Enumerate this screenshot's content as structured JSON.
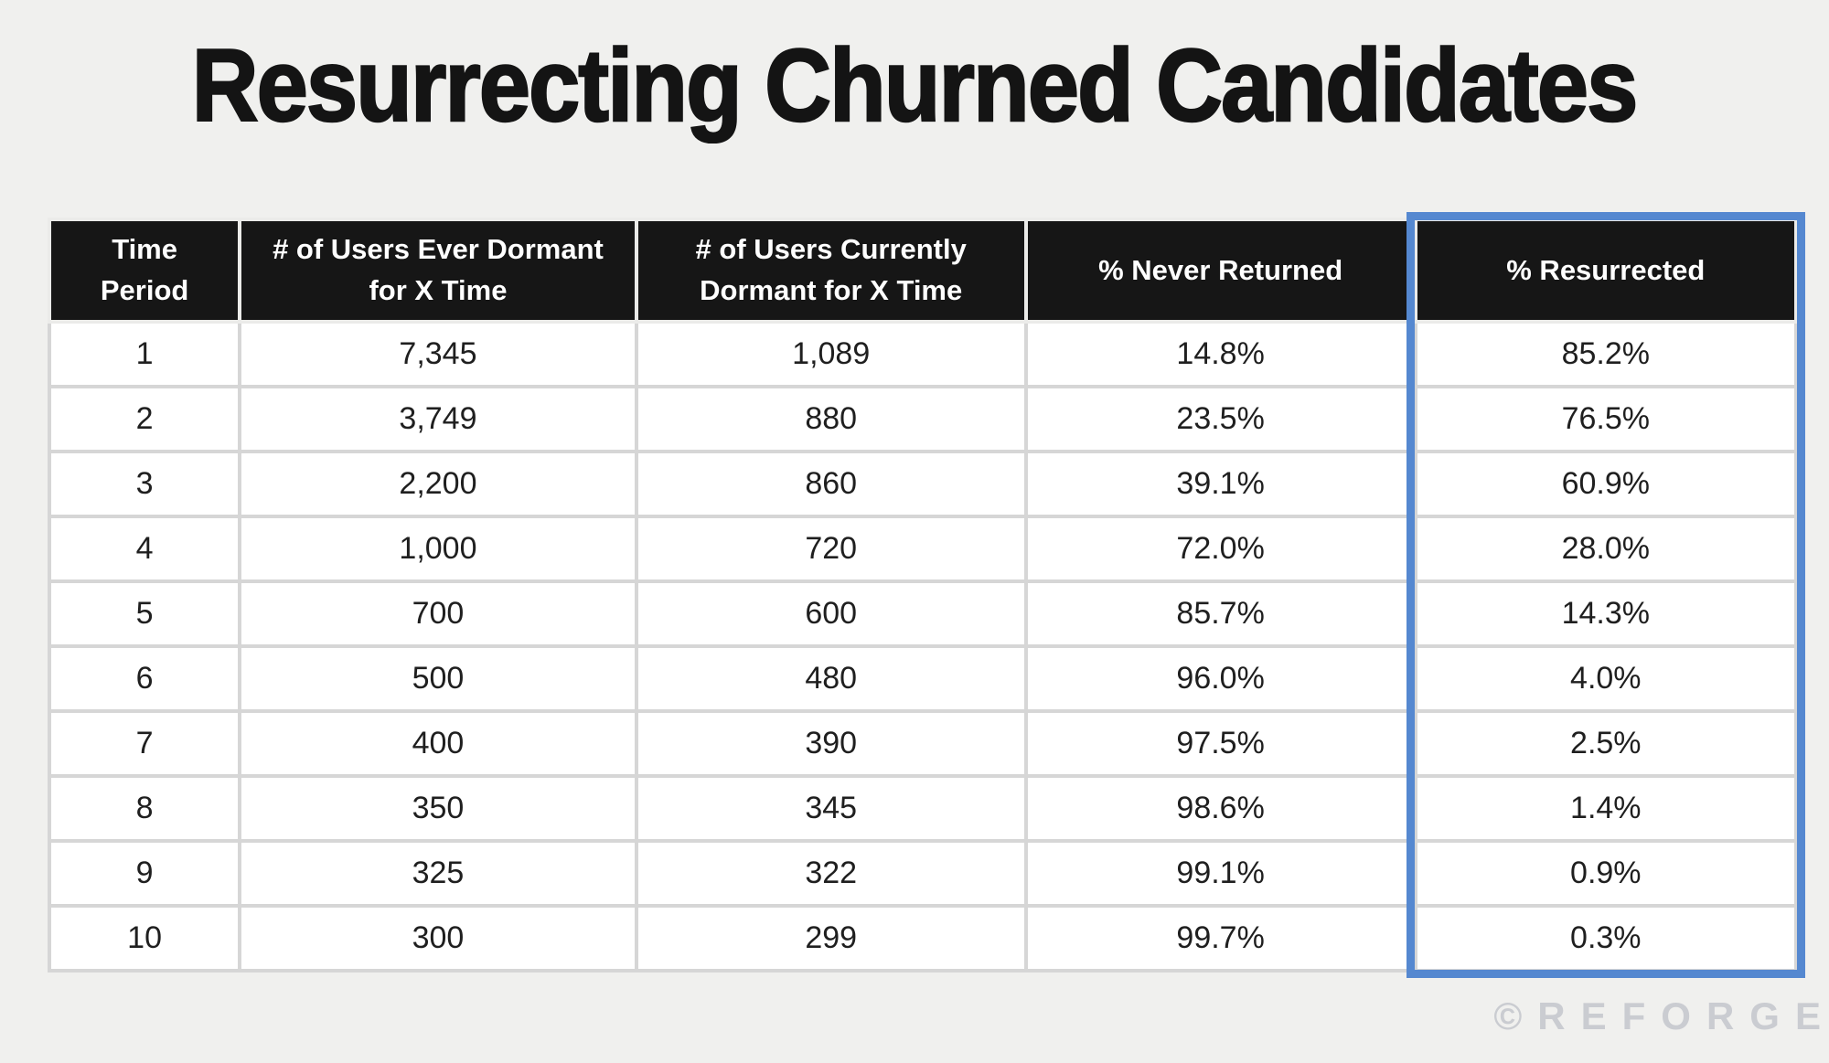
{
  "title": "Resurrecting Churned Candidates",
  "watermark": "©REFORGE",
  "colors": {
    "page_bg": "#f0f0ee",
    "title_color": "#141414",
    "header_bg": "#161616",
    "header_text": "#ffffff",
    "header_grid": "#ebebe9",
    "cell_bg": "#ffffff",
    "cell_text": "#1f1f1f",
    "grid": "#d6d6d6",
    "highlight_border": "#5588d0",
    "watermark_text": "#c4c6cc"
  },
  "chart_data": {
    "type": "table",
    "title": "Resurrecting Churned Candidates",
    "columns": [
      "Time Period",
      "# of Users Ever Dormant for X Time",
      "# of Users Currently Dormant for X Time",
      "% Never Returned",
      "% Resurrected"
    ],
    "rows": [
      [
        "1",
        "7,345",
        "1,089",
        "14.8%",
        "85.2%"
      ],
      [
        "2",
        "3,749",
        "880",
        "23.5%",
        "76.5%"
      ],
      [
        "3",
        "2,200",
        "860",
        "39.1%",
        "60.9%"
      ],
      [
        "4",
        "1,000",
        "720",
        "72.0%",
        "28.0%"
      ],
      [
        "5",
        "700",
        "600",
        "85.7%",
        "14.3%"
      ],
      [
        "6",
        "500",
        "480",
        "96.0%",
        "4.0%"
      ],
      [
        "7",
        "400",
        "390",
        "97.5%",
        "2.5%"
      ],
      [
        "8",
        "350",
        "345",
        "98.6%",
        "1.4%"
      ],
      [
        "9",
        "325",
        "322",
        "99.1%",
        "0.9%"
      ],
      [
        "10",
        "300",
        "299",
        "99.7%",
        "0.3%"
      ]
    ],
    "highlighted_column": "% Resurrected",
    "layout": {
      "column_width_pct": [
        10.9,
        22.7,
        22.3,
        22.3,
        21.8
      ],
      "highlight_column_index": 4,
      "grid": "on"
    }
  }
}
